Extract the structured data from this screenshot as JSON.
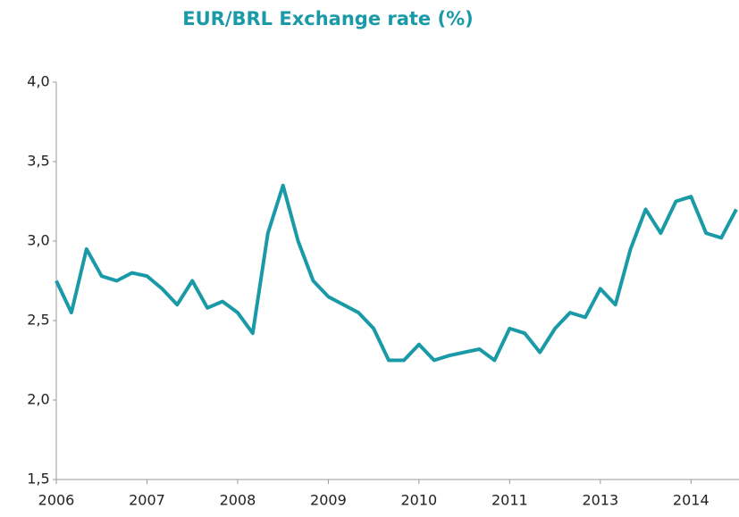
{
  "chart_data": {
    "type": "line",
    "title": "EUR/BRL Exchange rate (%)",
    "categories": [
      "2006",
      null,
      null,
      null,
      null,
      null,
      "2007",
      null,
      null,
      null,
      null,
      null,
      "2008",
      null,
      null,
      null,
      null,
      null,
      "2009",
      null,
      null,
      null,
      null,
      null,
      "2010",
      null,
      null,
      null,
      null,
      null,
      "2011",
      null,
      null,
      null,
      null,
      null,
      "2013",
      null,
      null,
      null,
      null,
      null,
      "2014",
      null,
      null,
      null
    ],
    "series": [
      {
        "name": "EUR/BRL",
        "color": "#1a9aa6",
        "values": [
          2.75,
          2.55,
          2.95,
          2.78,
          2.75,
          2.8,
          2.78,
          2.7,
          2.6,
          2.75,
          2.58,
          2.62,
          2.55,
          2.42,
          3.05,
          3.35,
          3.0,
          2.75,
          2.65,
          2.6,
          2.55,
          2.45,
          2.25,
          2.25,
          2.35,
          2.25,
          2.28,
          2.3,
          2.32,
          2.25,
          2.45,
          2.42,
          2.3,
          2.45,
          2.55,
          2.52,
          2.7,
          2.6,
          2.95,
          3.2,
          3.05,
          3.25,
          3.28,
          3.05,
          3.02,
          3.2
        ]
      }
    ],
    "ylim": [
      1.5,
      4.0
    ],
    "yticks": [
      {
        "value": 1.5,
        "label": "1,5"
      },
      {
        "value": 2.0,
        "label": "2,0"
      },
      {
        "value": 2.5,
        "label": "2,5"
      },
      {
        "value": 3.0,
        "label": "3,0"
      },
      {
        "value": 3.5,
        "label": "3,5"
      },
      {
        "value": 4.0,
        "label": "4,0"
      }
    ]
  }
}
